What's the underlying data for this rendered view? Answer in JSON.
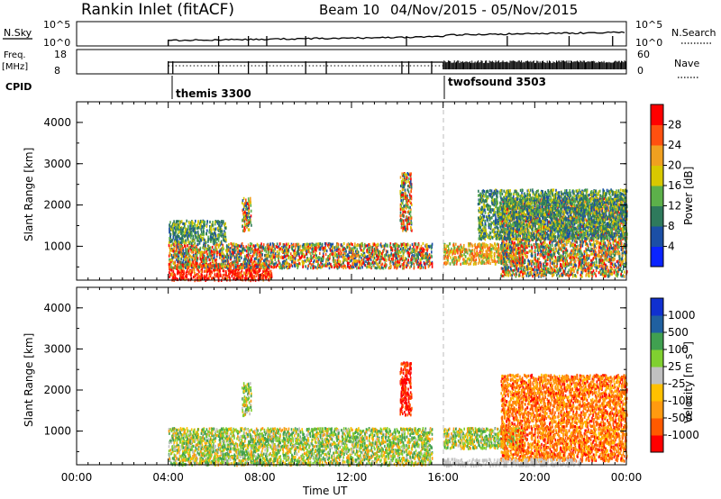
{
  "header": {
    "station": "Rankin Inlet (fitACF)",
    "beam": "Beam 10",
    "date_range": "04/Nov/2015 - 05/Nov/2015"
  },
  "top_panels": {
    "nsky_label": "N.Sky",
    "nsky_ticks": [
      "10^5",
      "10^0"
    ],
    "nsearch_label": "N.Search",
    "nsearch_ticks": [
      "10^5",
      "10^0"
    ],
    "freq_label": "Freq.",
    "freq_unit": "[MHz]",
    "freq_ticks": [
      "18",
      "8"
    ],
    "nave_label": "Nave",
    "nave_ticks": [
      "60",
      "0"
    ],
    "cpid_label": "CPID",
    "cpid_entries": [
      {
        "name": "themis 3300",
        "start_hour": 4
      },
      {
        "name": "twofsound 3503",
        "start_hour": 16
      }
    ]
  },
  "x_axis": {
    "label": "Time UT",
    "ticks": [
      "00:00",
      "04:00",
      "08:00",
      "12:00",
      "16:00",
      "20:00",
      "00:00"
    ],
    "tick_hours": [
      0,
      4,
      8,
      12,
      16,
      20,
      24
    ]
  },
  "colors": {
    "power_scale": [
      "#0a24ff",
      "#1b4fa6",
      "#2e7a5c",
      "#5cb04a",
      "#d8c800",
      "#f0a020",
      "#ff5010",
      "#ff0000"
    ],
    "velocity_scale": [
      "#ff0000",
      "#ff5a00",
      "#ff9a10",
      "#ffc000",
      "#c0c0c0",
      "#80d030",
      "#40a050",
      "#2060a0",
      "#1030d0"
    ],
    "ground_scatter": "#c0c0c0"
  },
  "chart_data": [
    {
      "type": "heatmap",
      "title": "",
      "xlabel": "Time UT",
      "ylabel": "Slant Range [km]",
      "xlim_hours": [
        0,
        24
      ],
      "ylim": [
        180,
        4500
      ],
      "yticks": [
        "1000",
        "2000",
        "3000",
        "4000"
      ],
      "colorbar_label": "Power [dB]",
      "colorbar_ticks": [
        "4",
        "8",
        "12",
        "16",
        "20",
        "24",
        "28"
      ],
      "colorbar_range": [
        0,
        30
      ],
      "regions": [
        {
          "t0": 4.0,
          "t1": 8.5,
          "r0": 200,
          "r1": 600,
          "level": "high"
        },
        {
          "t0": 4.0,
          "t1": 15.5,
          "r0": 500,
          "r1": 1100,
          "level": "mixed"
        },
        {
          "t0": 4.0,
          "t1": 6.5,
          "r0": 1100,
          "r1": 1650,
          "level": "low"
        },
        {
          "t0": 7.2,
          "t1": 7.6,
          "r0": 1400,
          "r1": 2200,
          "level": "mixed"
        },
        {
          "t0": 14.1,
          "t1": 14.6,
          "r0": 1400,
          "r1": 2800,
          "level": "mixed"
        },
        {
          "t0": 16.0,
          "t1": 19.5,
          "r0": 600,
          "r1": 1100,
          "level": "mid"
        },
        {
          "t0": 18.5,
          "t1": 24.0,
          "r0": 300,
          "r1": 2200,
          "level": "mixed"
        },
        {
          "t0": 17.5,
          "t1": 24.0,
          "r0": 1200,
          "r1": 2400,
          "level": "low"
        }
      ]
    },
    {
      "type": "heatmap",
      "title": "",
      "xlabel": "Time UT",
      "ylabel": "Slant Range [km]",
      "xlim_hours": [
        0,
        24
      ],
      "ylim": [
        180,
        4500
      ],
      "yticks": [
        "1000",
        "2000",
        "3000",
        "4000"
      ],
      "colorbar_label": "Velocity [m s^-1]",
      "colorbar_ticks": [
        "1000",
        "500",
        "100",
        "25",
        "-25",
        "-100",
        "-500",
        "-1000"
      ],
      "colorbar_range": [
        -1000,
        1000
      ],
      "regions": [
        {
          "t0": 4.0,
          "t1": 15.5,
          "r0": 200,
          "r1": 1100,
          "level": "green-mix"
        },
        {
          "t0": 14.1,
          "t1": 14.6,
          "r0": 1400,
          "r1": 2700,
          "level": "red"
        },
        {
          "t0": 7.2,
          "t1": 7.6,
          "r0": 1400,
          "r1": 2200,
          "level": "green-mix"
        },
        {
          "t0": 16.0,
          "t1": 19.5,
          "r0": 600,
          "r1": 1100,
          "level": "green-mix"
        },
        {
          "t0": 18.5,
          "t1": 24.0,
          "r0": 300,
          "r1": 2400,
          "level": "orange"
        },
        {
          "t0": 16.0,
          "t1": 22.0,
          "r0": 180,
          "r1": 350,
          "level": "gray"
        }
      ]
    }
  ]
}
